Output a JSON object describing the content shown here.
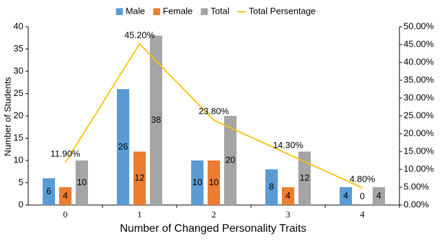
{
  "chart_data": {
    "type": "bar",
    "x_label": "Number of Changed Personality Traits",
    "y_label": "Number of Students",
    "categories": [
      "0",
      "1",
      "2",
      "3",
      "4"
    ],
    "series": [
      {
        "name": "Male",
        "color": "#5b9bd5",
        "values": [
          6,
          26,
          10,
          8,
          4
        ]
      },
      {
        "name": "Female",
        "color": "#ed7d31",
        "values": [
          4,
          12,
          10,
          4,
          0
        ]
      },
      {
        "name": "Total",
        "color": "#a5a5a5",
        "values": [
          10,
          38,
          20,
          12,
          4
        ]
      },
      {
        "name": "Total Persentage",
        "color": "#ffc000",
        "type": "line",
        "axis": "y2",
        "values": [
          11.9,
          45.2,
          23.8,
          14.3,
          4.8
        ],
        "value_labels": [
          "11.90%",
          "45.20%",
          "23.80%",
          "14.30%",
          "4.80%"
        ]
      }
    ],
    "ylim": [
      0,
      40
    ],
    "yticks": [
      0,
      5,
      10,
      15,
      20,
      25,
      30,
      35,
      40
    ],
    "y2lim": [
      0,
      50
    ],
    "y2ticks": [
      {
        "value": 0,
        "label": "0.00%"
      },
      {
        "value": 5,
        "label": "5.00%"
      },
      {
        "value": 10,
        "label": "10.00%"
      },
      {
        "value": 15,
        "label": "15.00%"
      },
      {
        "value": 20,
        "label": "20.00%"
      },
      {
        "value": 25,
        "label": "25.00%"
      },
      {
        "value": 30,
        "label": "30.00%"
      },
      {
        "value": 35,
        "label": "35.00%"
      },
      {
        "value": 40,
        "label": "40.00%"
      },
      {
        "value": 45,
        "label": "45.00%"
      },
      {
        "value": 50,
        "label": "50.00%"
      }
    ],
    "grid": false,
    "legend": "top"
  }
}
